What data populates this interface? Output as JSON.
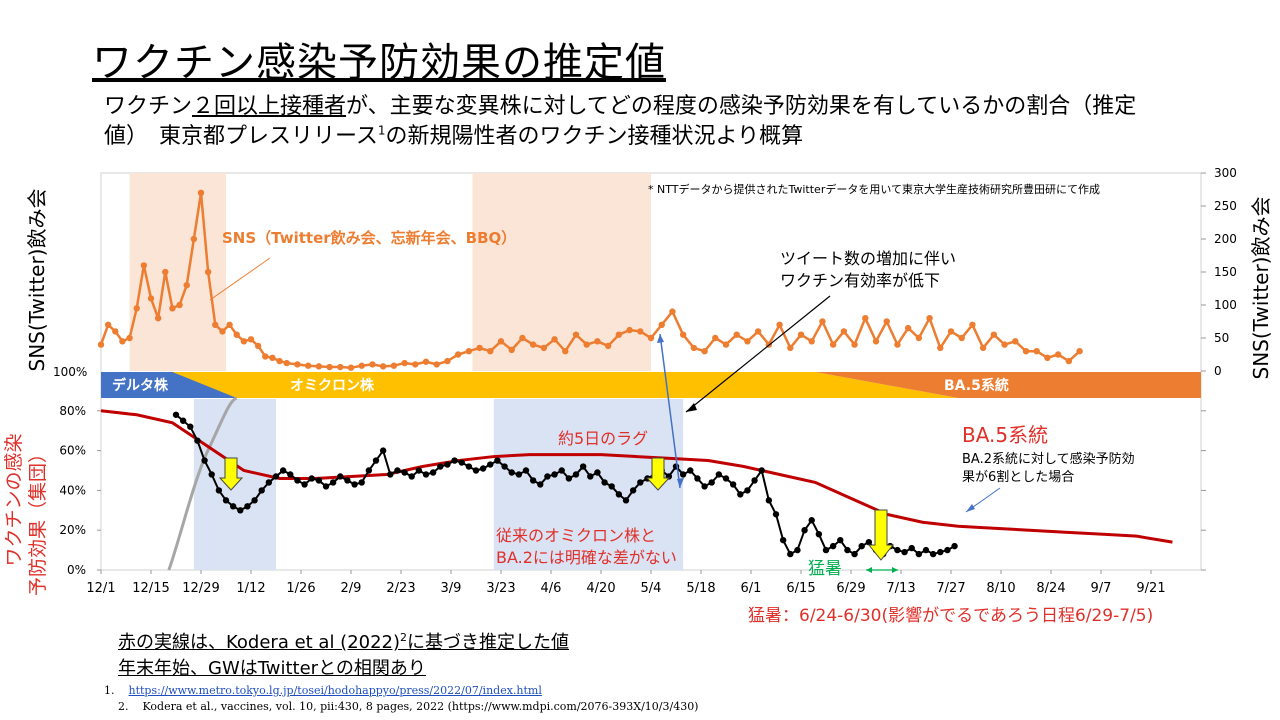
{
  "title": "ワクチン感染予防効果の推定値",
  "subtitle": {
    "line1_pre": "ワクチン",
    "line1_underline": "２回以上接種者",
    "line1_post": "が、主要な変異株に対してどの程度の感染予防効果を有しているかの割合（推定",
    "line2_pre": "値）　東京都プレスリリース",
    "line2_sup": "1",
    "line2_post": "の新規陽性者のワクチン接種状況より概算"
  },
  "colors": {
    "sns": "#ed7d31",
    "effect": "#000000",
    "kodera": "#c00000",
    "delta": "#4472c4",
    "omicron": "#ffc000",
    "ba5": "#ed7d31",
    "shade_orange": "#fbe5d6",
    "shade_blue": "#dae3f3",
    "gray": "#a6a6a6",
    "arrow_yellow": "#ffff00",
    "green": "#00b050",
    "blue_arrow": "#4472c4",
    "red_text": "#e0302a"
  },
  "chart_data": [
    {
      "type": "line",
      "name_panel": "SNS panel",
      "ylabel_left": "SNS(Twitter)飲み会",
      "ylabel_right": "SNS(Twitter)飲み会",
      "y_ticks": [
        "300",
        "250",
        "200",
        "150",
        "100",
        "50",
        "0"
      ],
      "ylim": [
        0,
        300
      ],
      "x_dates": [
        "12/1",
        "12/15",
        "12/29",
        "1/12",
        "1/26",
        "2/9",
        "2/23",
        "3/9",
        "3/23",
        "4/6",
        "4/20",
        "5/4",
        "5/18",
        "6/1",
        "6/15",
        "6/29",
        "7/13",
        "7/27",
        "8/10",
        "8/24",
        "9/7",
        "9/21"
      ],
      "series": [
        {
          "name": "SNS（Twitter飲み会、忘新年会、BBQ）",
          "x_day": [
            0,
            2,
            4,
            6,
            8,
            10,
            12,
            14,
            16,
            18,
            20,
            22,
            24,
            26,
            28,
            30,
            32,
            34,
            36,
            38,
            40,
            42,
            44,
            46,
            48,
            50,
            52,
            55,
            58,
            61,
            64,
            67,
            70,
            73,
            76,
            79,
            82,
            85,
            88,
            91,
            94,
            97,
            100,
            103,
            106,
            109,
            112,
            115,
            118,
            121,
            124,
            127,
            130,
            133,
            136,
            139,
            142,
            145,
            148,
            151,
            154,
            157,
            160,
            163,
            166,
            169,
            172,
            175,
            178,
            181,
            184,
            187,
            190,
            193,
            196,
            199,
            202,
            205,
            208,
            211,
            214,
            217,
            220,
            223,
            226,
            229,
            232,
            235,
            238,
            241,
            244,
            247,
            250,
            253,
            256,
            259,
            262,
            265,
            268,
            271,
            274
          ],
          "values": [
            40,
            70,
            60,
            45,
            50,
            95,
            160,
            110,
            80,
            150,
            95,
            100,
            130,
            200,
            270,
            150,
            70,
            60,
            70,
            55,
            45,
            48,
            38,
            22,
            20,
            15,
            12,
            10,
            8,
            7,
            6,
            6,
            5,
            8,
            10,
            7,
            8,
            12,
            10,
            14,
            10,
            15,
            25,
            30,
            35,
            30,
            45,
            32,
            50,
            40,
            35,
            48,
            30,
            55,
            40,
            45,
            38,
            55,
            62,
            60,
            50,
            70,
            90,
            55,
            35,
            30,
            50,
            40,
            55,
            45,
            60,
            40,
            70,
            35,
            55,
            45,
            75,
            40,
            60,
            40,
            80,
            45,
            75,
            40,
            65,
            50,
            80,
            35,
            60,
            50,
            70,
            35,
            55,
            40,
            45,
            30,
            30,
            20,
            25,
            15,
            30
          ]
        }
      ],
      "annotation": "* NTTデータから提供されたTwitterデータを用いて東京大学生産技術研究所豊田研にて作成"
    },
    {
      "type": "line",
      "name_panel": "Vaccine effect panel",
      "ylabel_left": "ワクチンの感染予防効果（集団）",
      "y_ticks": [
        "100%",
        "80%",
        "60%",
        "40%",
        "20%",
        "0%"
      ],
      "ylim": [
        0,
        100
      ],
      "x_dates": [
        "12/1",
        "12/15",
        "12/29",
        "1/12",
        "1/26",
        "2/9",
        "2/23",
        "3/9",
        "3/23",
        "4/6",
        "4/20",
        "5/4",
        "5/18",
        "6/1",
        "6/15",
        "6/29",
        "7/13",
        "7/27",
        "8/10",
        "8/24",
        "9/7",
        "9/21"
      ],
      "series": [
        {
          "name": "effect",
          "x_day": [
            21,
            23,
            25,
            27,
            29,
            31,
            33,
            35,
            37,
            39,
            41,
            43,
            45,
            47,
            49,
            51,
            53,
            55,
            57,
            59,
            61,
            63,
            65,
            67,
            69,
            71,
            73,
            75,
            77,
            79,
            81,
            83,
            85,
            87,
            89,
            91,
            93,
            95,
            97,
            99,
            101,
            103,
            105,
            107,
            109,
            111,
            113,
            115,
            117,
            119,
            121,
            123,
            125,
            127,
            129,
            131,
            133,
            135,
            137,
            139,
            141,
            143,
            145,
            147,
            149,
            151,
            153,
            155,
            157,
            159,
            161,
            163,
            165,
            167,
            169,
            171,
            173,
            175,
            177,
            179,
            181,
            183,
            185,
            187,
            189,
            191,
            193,
            195,
            197,
            199,
            201,
            203,
            205,
            207,
            209,
            211,
            213,
            215,
            217,
            219,
            221,
            223,
            225,
            227,
            229,
            231,
            233,
            235,
            237,
            239
          ],
          "values": [
            78,
            75,
            72,
            65,
            55,
            48,
            40,
            35,
            32,
            30,
            32,
            35,
            40,
            44,
            47,
            50,
            48,
            45,
            43,
            46,
            45,
            42,
            44,
            47,
            45,
            43,
            44,
            50,
            55,
            60,
            48,
            50,
            49,
            47,
            50,
            48,
            49,
            52,
            53,
            55,
            54,
            52,
            50,
            51,
            53,
            55,
            52,
            49,
            48,
            50,
            45,
            43,
            47,
            48,
            50,
            46,
            48,
            52,
            47,
            49,
            44,
            42,
            38,
            35,
            40,
            44,
            46,
            48,
            50,
            47,
            52,
            48,
            50,
            46,
            42,
            44,
            48,
            46,
            43,
            38,
            40,
            45,
            50,
            35,
            28,
            15,
            8,
            10,
            20,
            25,
            18,
            10,
            12,
            15,
            10,
            8,
            12,
            14,
            10,
            8,
            12,
            10,
            9,
            11,
            8,
            10,
            8,
            9,
            10,
            12
          ]
        },
        {
          "name": "Kodera",
          "x_day": [
            0,
            10,
            20,
            30,
            40,
            50,
            60,
            70,
            80,
            90,
            100,
            110,
            120,
            130,
            140,
            150,
            160,
            170,
            180,
            190,
            200,
            210,
            220,
            230,
            240,
            250,
            260,
            270,
            280,
            290,
            300
          ],
          "values": [
            80,
            78,
            74,
            62,
            50,
            46,
            46,
            47,
            48,
            52,
            55,
            57,
            58,
            58,
            58,
            57,
            56,
            55,
            52,
            48,
            44,
            36,
            28,
            24,
            22,
            21,
            20,
            19,
            18,
            17,
            14
          ]
        }
      ],
      "band_labels": {
        "delta": "デルタ株",
        "omicron": "オミクロン株",
        "ba5": "BA.5系統"
      }
    }
  ],
  "annotations": {
    "tweet_increase_1": "ツイート数の増加に伴い",
    "tweet_increase_2": "ワクチン有効率が低下",
    "lag": "約5日のラグ",
    "omicron_ba2_1": "従来のオミクロン株と",
    "omicron_ba2_2": "BA.2には明確な差がない",
    "ba5_title": "BA.5系統",
    "ba5_desc_1": "BA.2系統に対して感染予防効",
    "ba5_desc_2": "果が6割とした場合",
    "heat": "猛暑",
    "heat_period": "猛暑：6/24-6/30(影響がでるであろう日程6/29-7/5)"
  },
  "notes": {
    "line1_pre": "赤の実線は、Kodera et al (2022)",
    "line1_sup": "2",
    "line1_post": "に基づき推定した値",
    "line2": "年末年始、GWはTwitterとの相関あり"
  },
  "references": {
    "r1_num": "1.",
    "r1_url": "https://www.metro.tokyo.lg.jp/tosei/hodohappyo/press/2022/07/index.html",
    "r2_num": "2.",
    "r2_text": "Kodera et al., vaccines, vol. 10, pii:430, 8 pages, 2022 (https://www.mdpi.com/2076-393X/10/3/430)"
  }
}
